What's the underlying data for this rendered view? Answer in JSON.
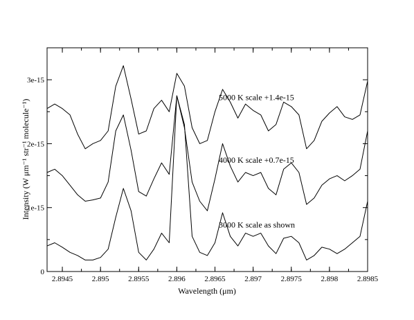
{
  "chart_data": {
    "type": "line",
    "title": "",
    "xlabel": "Wavelength  (μm)",
    "ylabel": "Intensity (W μm⁻¹ str⁻¹ molecule⁻¹)",
    "xlim": [
      2.8943,
      2.8985
    ],
    "ylim": [
      0,
      3.5e-15
    ],
    "x_ticks": [
      {
        "value": 2.8945,
        "label": "2.8945"
      },
      {
        "value": 2.895,
        "label": "2.895"
      },
      {
        "value": 2.8955,
        "label": "2.8955"
      },
      {
        "value": 2.896,
        "label": "2.896"
      },
      {
        "value": 2.8965,
        "label": "2.8965"
      },
      {
        "value": 2.897,
        "label": "2.897"
      },
      {
        "value": 2.8975,
        "label": "2.8975"
      },
      {
        "value": 2.898,
        "label": "2.898"
      },
      {
        "value": 2.8985,
        "label": "2.8985"
      }
    ],
    "y_ticks": [
      {
        "value": 0,
        "label": "0"
      },
      {
        "value": 1e-15,
        "label": "1e-15"
      },
      {
        "value": 2e-15,
        "label": "2e-15"
      },
      {
        "value": 3e-15,
        "label": "3e-15"
      }
    ],
    "grid": false,
    "annotations": [
      {
        "text": "5000 K scale +1.4e-15",
        "x": 2.89655,
        "y": 2.68e-15
      },
      {
        "text": "4000 K scale +0.7e-15",
        "x": 2.89655,
        "y": 1.7e-15
      },
      {
        "text": "3000 K scale as shown",
        "x": 2.89655,
        "y": 6.9e-16
      }
    ],
    "x": [
      2.8943,
      2.8944,
      2.8945,
      2.8946,
      2.8947,
      2.8948,
      2.8949,
      2.895,
      2.8951,
      2.8952,
      2.8953,
      2.8954,
      2.8955,
      2.8956,
      2.8957,
      2.8958,
      2.8959,
      2.896,
      2.8961,
      2.8962,
      2.8963,
      2.8964,
      2.8965,
      2.8966,
      2.8967,
      2.8968,
      2.8969,
      2.897,
      2.8971,
      2.8972,
      2.8973,
      2.8974,
      2.8975,
      2.8976,
      2.8977,
      2.8978,
      2.8979,
      2.898,
      2.8981,
      2.8982,
      2.8983,
      2.8984,
      2.8985
    ],
    "series": [
      {
        "values": [
          4e-16,
          4.5e-16,
          3.8e-16,
          3e-16,
          2.5e-16,
          1.8e-16,
          1.8e-16,
          2.2e-16,
          3.5e-16,
          8.5e-16,
          1.3e-15,
          9.5e-16,
          3e-16,
          1.8e-16,
          3.5e-16,
          6e-16,
          4.5e-16,
          2.75e-15,
          2.3e-15,
          5.5e-16,
          3e-16,
          2.5e-16,
          4.5e-16,
          9.2e-16,
          5.5e-16,
          4e-16,
          6e-16,
          5.5e-16,
          6e-16,
          4e-16,
          2.8e-16,
          5.2e-16,
          5.5e-16,
          4.5e-16,
          1.8e-16,
          2.5e-16,
          3.8e-16,
          3.5e-16,
          2.8e-16,
          3.5e-16,
          4.5e-16,
          5.5e-16,
          1.1e-15
        ]
      },
      {
        "values": [
          1.55e-15,
          1.6e-15,
          1.5e-15,
          1.35e-15,
          1.2e-15,
          1.1e-15,
          1.12e-15,
          1.15e-15,
          1.4e-15,
          2.2e-15,
          2.45e-15,
          1.9e-15,
          1.25e-15,
          1.18e-15,
          1.45e-15,
          1.7e-15,
          1.52e-15,
          2.75e-15,
          2.25e-15,
          1.4e-15,
          1.1e-15,
          9.5e-16,
          1.45e-15,
          2e-15,
          1.65e-15,
          1.4e-15,
          1.55e-15,
          1.5e-15,
          1.55e-15,
          1.3e-15,
          1.2e-15,
          1.6e-15,
          1.7e-15,
          1.55e-15,
          1.05e-15,
          1.15e-15,
          1.35e-15,
          1.45e-15,
          1.5e-15,
          1.42e-15,
          1.5e-15,
          1.6e-15,
          2.2e-15
        ]
      },
      {
        "values": [
          2.55e-15,
          2.62e-15,
          2.55e-15,
          2.45e-15,
          2.15e-15,
          1.92e-15,
          2e-15,
          2.05e-15,
          2.2e-15,
          2.9e-15,
          3.22e-15,
          2.7e-15,
          2.15e-15,
          2.2e-15,
          2.55e-15,
          2.68e-15,
          2.5e-15,
          3.1e-15,
          2.9e-15,
          2.25e-15,
          2e-15,
          2.05e-15,
          2.5e-15,
          2.85e-15,
          2.65e-15,
          2.4e-15,
          2.62e-15,
          2.52e-15,
          2.45e-15,
          2.2e-15,
          2.3e-15,
          2.65e-15,
          2.58e-15,
          2.45e-15,
          1.92e-15,
          2.05e-15,
          2.35e-15,
          2.48e-15,
          2.58e-15,
          2.42e-15,
          2.38e-15,
          2.45e-15,
          2.98e-15
        ]
      }
    ]
  }
}
